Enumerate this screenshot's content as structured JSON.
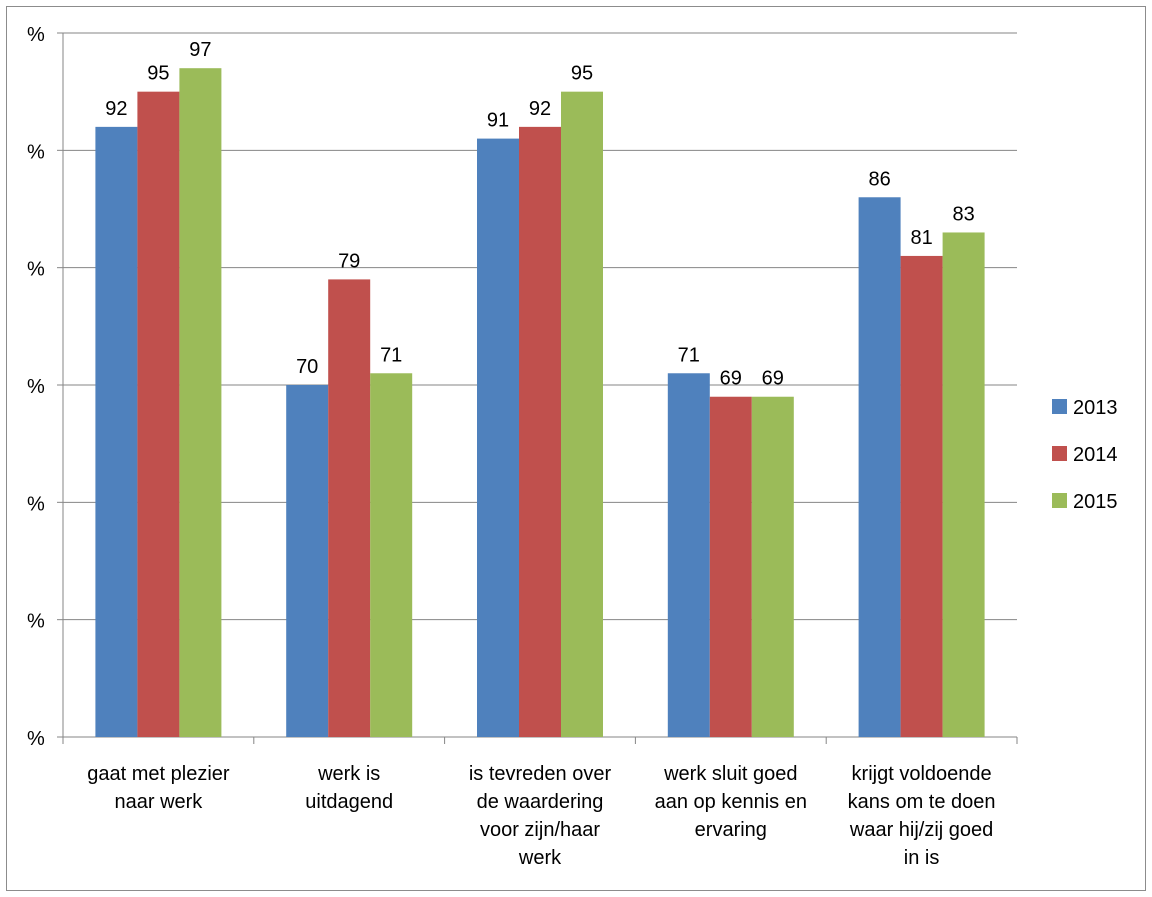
{
  "chart_data": {
    "type": "bar",
    "title": "",
    "xlabel": "",
    "ylabel": "",
    "ylim": [
      40,
      100
    ],
    "y_tick_values": [
      40,
      50,
      60,
      70,
      80,
      90,
      100
    ],
    "y_tick_labels": [
      "%",
      "%",
      "%",
      "%",
      "%",
      "%",
      "%"
    ],
    "grid": true,
    "legend_position": "right",
    "categories": [
      [
        "gaat met plezier",
        "naar werk"
      ],
      [
        "werk is",
        "uitdagend"
      ],
      [
        "is tevreden over",
        "de waardering",
        "voor zijn/haar",
        "werk"
      ],
      [
        "werk sluit goed",
        "aan op kennis en",
        "ervaring"
      ],
      [
        "krijgt voldoende",
        "kans om te doen",
        "waar hij/zij goed",
        "in is"
      ]
    ],
    "series": [
      {
        "name": "2013",
        "color": "#4f81bd",
        "values": [
          92,
          70,
          91,
          71,
          86
        ]
      },
      {
        "name": "2014",
        "color": "#c0504d",
        "values": [
          95,
          79,
          92,
          69,
          81
        ]
      },
      {
        "name": "2015",
        "color": "#9bbb59",
        "values": [
          97,
          71,
          95,
          69,
          83
        ]
      }
    ]
  }
}
